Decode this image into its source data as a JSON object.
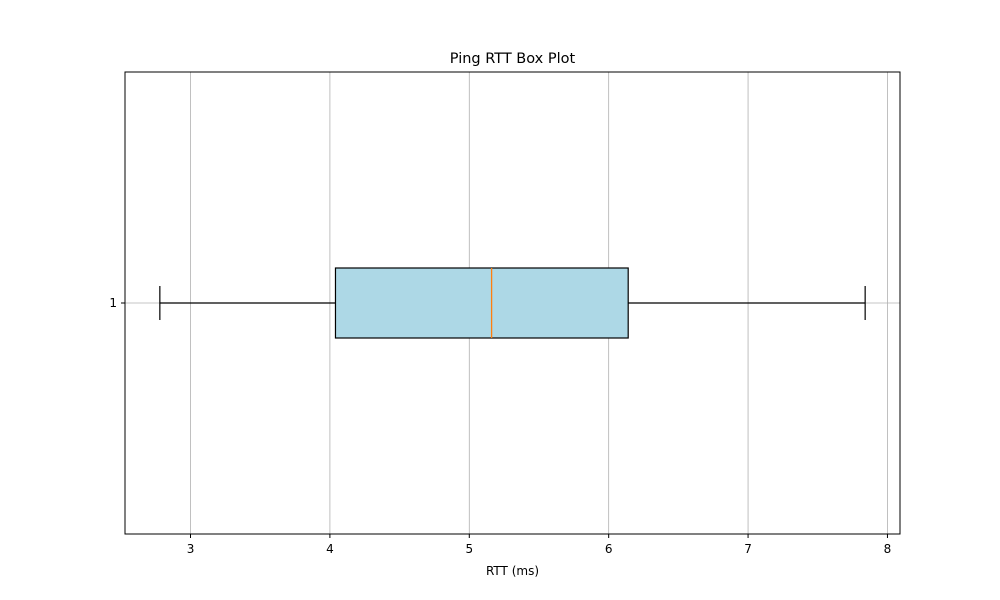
{
  "chart_data": {
    "type": "box",
    "orientation": "horizontal",
    "title": "Ping RTT Box Plot",
    "xlabel": "RTT (ms)",
    "ylabel": "",
    "xlim": [
      2.53,
      8.09
    ],
    "x_ticks": [
      3,
      4,
      5,
      6,
      7,
      8
    ],
    "grid": true,
    "boxes": [
      {
        "label": "1",
        "whisker_low": 2.78,
        "q1": 4.04,
        "median": 5.16,
        "q3": 6.14,
        "whisker_high": 7.84
      }
    ],
    "colors": {
      "box_fill": "#add8e6",
      "box_edge": "#000000",
      "median": "#ff7f0e",
      "grid": "#b0b0b0",
      "axes": "#000000"
    }
  }
}
